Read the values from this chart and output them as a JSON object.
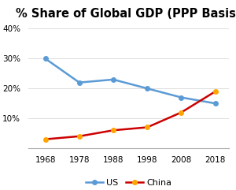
{
  "title": "% Share of Global GDP (PPP Basis)",
  "years": [
    1968,
    1978,
    1988,
    1998,
    2008,
    2018
  ],
  "us_values": [
    30,
    22,
    23,
    20,
    17,
    15
  ],
  "china_values": [
    3,
    4,
    6,
    7,
    12,
    19
  ],
  "us_color": "#5B9BD5",
  "china_color": "#CC0000",
  "us_marker_color": "#5B9BD5",
  "china_marker_color": "#FFA500",
  "ylim": [
    0,
    42
  ],
  "yticks": [
    10,
    20,
    30,
    40
  ],
  "xlim": [
    1963,
    2022
  ],
  "background_color": "#FFFFFF",
  "legend_labels": [
    "US",
    "China"
  ],
  "title_fontsize": 10.5,
  "tick_fontsize": 7.5,
  "linewidth": 1.8,
  "markersize": 4
}
